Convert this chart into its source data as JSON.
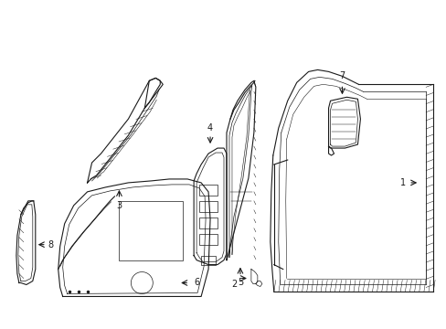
{
  "bg_color": "#ffffff",
  "line_color": "#1a1a1a",
  "figsize": [
    4.89,
    3.6
  ],
  "dpi": 100,
  "lw_main": 0.8,
  "lw_inner": 0.5,
  "lw_hatch": 0.35,
  "parts": {
    "part1_label": "1",
    "part2_label": "2",
    "part3_label": "3",
    "part4_label": "4",
    "part5_label": "5",
    "part6_label": "6",
    "part7_label": "7",
    "part8_label": "8"
  }
}
